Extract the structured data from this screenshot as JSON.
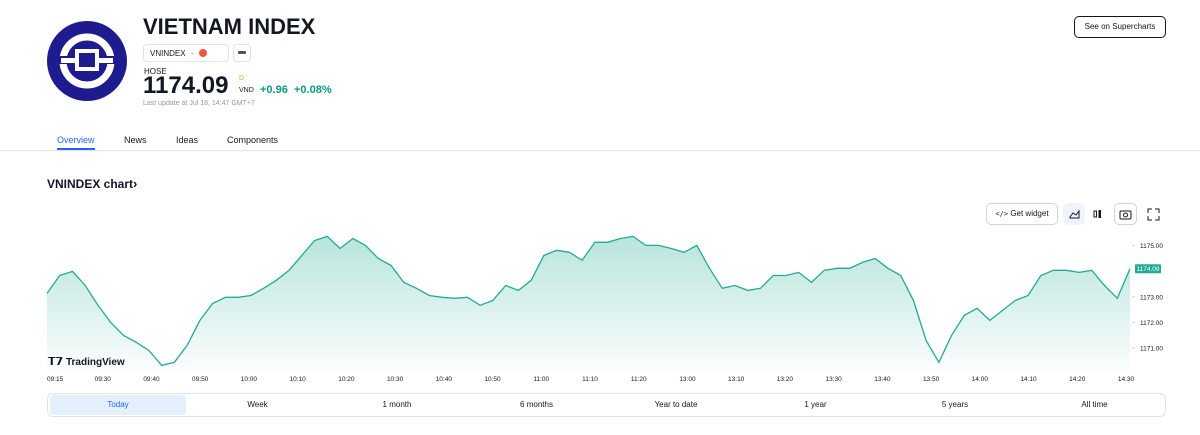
{
  "header": {
    "title": "VIETNAM INDEX",
    "symbol": "VNINDEX",
    "separator": "·",
    "exchange": "HOSE",
    "price": "1174.09",
    "price_flag": "D",
    "currency": "VND",
    "change": "+0.96",
    "change_percent": "+0.08%",
    "last_update": "Last update at Jul 18, 14:47 GMT+7",
    "supercharts_button": "See on Supercharts"
  },
  "tabs": [
    "Overview",
    "News",
    "Ideas",
    "Components"
  ],
  "chart_heading": "VNINDEX chart",
  "toolbar": {
    "widget_button": "Get widget"
  },
  "watermark": "TradingView",
  "ranges": [
    "Today",
    "Week",
    "1 month",
    "6 months",
    "Year to date",
    "1 year",
    "5 years",
    "All time"
  ],
  "chart_data": {
    "type": "area",
    "color": "#22ab94",
    "x_labels": [
      "09:15",
      "09:30",
      "09:40",
      "09:50",
      "10:00",
      "10:10",
      "10:20",
      "10:30",
      "10:40",
      "10:50",
      "11:00",
      "11:10",
      "11:20",
      "13:00",
      "13:10",
      "13:20",
      "13:30",
      "13:40",
      "13:50",
      "14:00",
      "14:10",
      "14:20",
      "14:30"
    ],
    "values": [
      1173.13,
      1173.83,
      1173.99,
      1173.44,
      1172.67,
      1172.0,
      1171.5,
      1171.23,
      1170.91,
      1170.33,
      1170.45,
      1171.11,
      1172.08,
      1172.74,
      1172.98,
      1172.98,
      1173.05,
      1173.33,
      1173.64,
      1174.03,
      1174.61,
      1175.19,
      1175.35,
      1174.88,
      1175.27,
      1175.0,
      1174.49,
      1174.22,
      1173.56,
      1173.33,
      1173.05,
      1172.98,
      1172.94,
      1172.98,
      1172.67,
      1172.86,
      1173.44,
      1173.25,
      1173.64,
      1174.61,
      1174.81,
      1174.73,
      1174.42,
      1175.12,
      1175.12,
      1175.27,
      1175.35,
      1175.0,
      1175.0,
      1174.88,
      1174.73,
      1175.0,
      1174.11,
      1173.33,
      1173.44,
      1173.25,
      1173.33,
      1173.83,
      1173.83,
      1173.95,
      1173.56,
      1174.03,
      1174.11,
      1174.11,
      1174.34,
      1174.49,
      1174.11,
      1173.83,
      1172.86,
      1171.3,
      1170.45,
      1171.5,
      1172.28,
      1172.55,
      1172.08,
      1172.47,
      1172.86,
      1173.05,
      1173.83,
      1174.03,
      1174.03,
      1173.95,
      1174.03,
      1173.44,
      1172.94,
      1174.09
    ],
    "ylim": [
      1170.15,
      1175.6
    ],
    "yticks": [
      {
        "value": 1171,
        "label": "1171.00"
      },
      {
        "value": 1172,
        "label": "1172.00"
      },
      {
        "value": 1173,
        "label": "1173.00"
      },
      {
        "value": 1175,
        "label": "1175.00"
      }
    ],
    "last_price": 1174.09
  }
}
